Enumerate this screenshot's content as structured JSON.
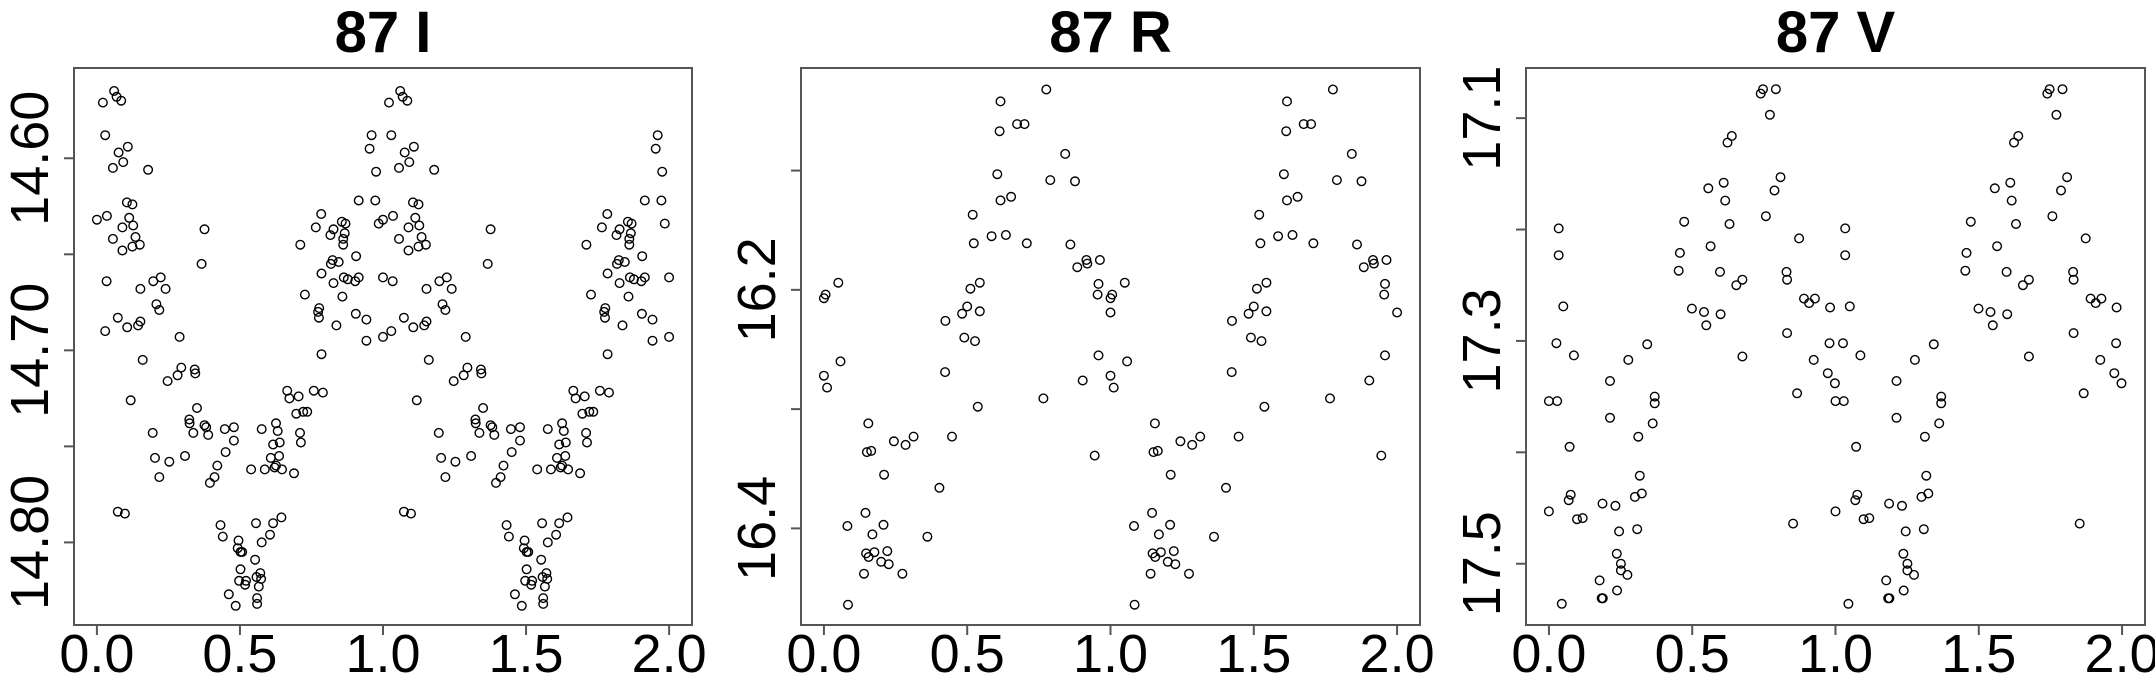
{
  "chart_data": [
    {
      "type": "scatter",
      "title": "87 I",
      "xlim": [
        -0.08,
        2.08
      ],
      "ylim": [
        14.843,
        14.553
      ],
      "y_reversed": true,
      "x_ticks": [
        0.0,
        0.5,
        1.0,
        1.5,
        2.0
      ],
      "x_tick_labels": [
        "0.0",
        "0.5",
        "1.0",
        "1.5",
        "2.0"
      ],
      "y_ticks": [
        14.6,
        14.65,
        14.7,
        14.75,
        14.8
      ],
      "y_tick_labels": [
        "14.60",
        "",
        "14.70",
        "",
        "14.80"
      ],
      "cycles_shown": 2,
      "grid": false,
      "marker": "open-circle",
      "points": [
        [
          0.0,
          14.632
        ],
        [
          0.021,
          14.571
        ],
        [
          0.029,
          14.588
        ],
        [
          0.035,
          14.63
        ],
        [
          0.034,
          14.664
        ],
        [
          0.029,
          14.69
        ],
        [
          0.06,
          14.565
        ],
        [
          0.069,
          14.568
        ],
        [
          0.085,
          14.57
        ],
        [
          0.056,
          14.605
        ],
        [
          0.076,
          14.597
        ],
        [
          0.092,
          14.602
        ],
        [
          0.108,
          14.594
        ],
        [
          0.056,
          14.642
        ],
        [
          0.089,
          14.636
        ],
        [
          0.105,
          14.623
        ],
        [
          0.124,
          14.624
        ],
        [
          0.113,
          14.631
        ],
        [
          0.127,
          14.635
        ],
        [
          0.135,
          14.641
        ],
        [
          0.124,
          14.646
        ],
        [
          0.15,
          14.645
        ],
        [
          0.089,
          14.648
        ],
        [
          0.179,
          14.606
        ],
        [
          0.073,
          14.683
        ],
        [
          0.106,
          14.688
        ],
        [
          0.144,
          14.687
        ],
        [
          0.152,
          14.685
        ],
        [
          0.152,
          14.668
        ],
        [
          0.197,
          14.664
        ],
        [
          0.223,
          14.662
        ],
        [
          0.24,
          14.668
        ],
        [
          0.208,
          14.676
        ],
        [
          0.218,
          14.679
        ],
        [
          0.16,
          14.705
        ],
        [
          0.118,
          14.726
        ],
        [
          0.289,
          14.693
        ],
        [
          0.295,
          14.709
        ],
        [
          0.282,
          14.713
        ],
        [
          0.247,
          14.716
        ],
        [
          0.342,
          14.71
        ],
        [
          0.344,
          14.712
        ],
        [
          0.376,
          14.637
        ],
        [
          0.366,
          14.655
        ],
        [
          0.35,
          14.73
        ],
        [
          0.195,
          14.743
        ],
        [
          0.323,
          14.736
        ],
        [
          0.324,
          14.738
        ],
        [
          0.337,
          14.743
        ],
        [
          0.376,
          14.739
        ],
        [
          0.382,
          14.74
        ],
        [
          0.389,
          14.744
        ],
        [
          0.203,
          14.756
        ],
        [
          0.253,
          14.758
        ],
        [
          0.308,
          14.755
        ],
        [
          0.218,
          14.766
        ],
        [
          0.073,
          14.784
        ],
        [
          0.098,
          14.785
        ],
        [
          0.421,
          14.76
        ],
        [
          0.411,
          14.766
        ],
        [
          0.395,
          14.769
        ],
        [
          0.45,
          14.753
        ],
        [
          0.447,
          14.741
        ],
        [
          0.479,
          14.74
        ],
        [
          0.479,
          14.747
        ],
        [
          0.432,
          14.791
        ],
        [
          0.44,
          14.797
        ],
        [
          0.495,
          14.799
        ],
        [
          0.492,
          14.803
        ],
        [
          0.502,
          14.805
        ],
        [
          0.508,
          14.805
        ],
        [
          0.502,
          14.814
        ],
        [
          0.497,
          14.82
        ],
        [
          0.518,
          14.822
        ],
        [
          0.521,
          14.82
        ],
        [
          0.461,
          14.827
        ],
        [
          0.485,
          14.833
        ],
        [
          0.56,
          14.829
        ],
        [
          0.56,
          14.832
        ],
        [
          0.553,
          14.809
        ],
        [
          0.558,
          14.818
        ],
        [
          0.571,
          14.816
        ],
        [
          0.574,
          14.819
        ],
        [
          0.566,
          14.823
        ],
        [
          0.576,
          14.8
        ],
        [
          0.556,
          14.79
        ],
        [
          0.605,
          14.796
        ],
        [
          0.616,
          14.79
        ],
        [
          0.645,
          14.787
        ],
        [
          0.539,
          14.762
        ],
        [
          0.587,
          14.762
        ],
        [
          0.608,
          14.756
        ],
        [
          0.621,
          14.761
        ],
        [
          0.626,
          14.76
        ],
        [
          0.637,
          14.755
        ],
        [
          0.647,
          14.762
        ],
        [
          0.689,
          14.764
        ],
        [
          0.616,
          14.749
        ],
        [
          0.639,
          14.748
        ],
        [
          0.632,
          14.742
        ],
        [
          0.626,
          14.738
        ],
        [
          0.576,
          14.741
        ],
        [
          0.665,
          14.721
        ],
        [
          0.673,
          14.725
        ],
        [
          0.705,
          14.724
        ],
        [
          0.697,
          14.733
        ],
        [
          0.721,
          14.732
        ],
        [
          0.735,
          14.732
        ],
        [
          0.71,
          14.743
        ],
        [
          0.713,
          14.748
        ],
        [
          0.758,
          14.721
        ],
        [
          0.79,
          14.722
        ],
        [
          0.785,
          14.702
        ],
        [
          0.711,
          14.645
        ],
        [
          0.727,
          14.671
        ],
        [
          0.765,
          14.636
        ],
        [
          0.784,
          14.629
        ],
        [
          0.785,
          14.66
        ],
        [
          0.773,
          14.68
        ],
        [
          0.776,
          14.683
        ],
        [
          0.777,
          14.678
        ],
        [
          0.816,
          14.64
        ],
        [
          0.827,
          14.637
        ],
        [
          0.856,
          14.633
        ],
        [
          0.869,
          14.634
        ],
        [
          0.861,
          14.642
        ],
        [
          0.866,
          14.639
        ],
        [
          0.861,
          14.645
        ],
        [
          0.824,
          14.653
        ],
        [
          0.818,
          14.655
        ],
        [
          0.845,
          14.654
        ],
        [
          0.906,
          14.651
        ],
        [
          0.863,
          14.662
        ],
        [
          0.877,
          14.663
        ],
        [
          0.915,
          14.662
        ],
        [
          0.903,
          14.664
        ],
        [
          0.827,
          14.665
        ],
        [
          0.858,
          14.672
        ],
        [
          0.837,
          14.687
        ],
        [
          0.905,
          14.681
        ],
        [
          0.942,
          14.684
        ],
        [
          0.942,
          14.695
        ],
        [
          0.915,
          14.622
        ],
        [
          0.953,
          14.595
        ],
        [
          0.96,
          14.588
        ],
        [
          0.976,
          14.607
        ],
        [
          0.973,
          14.622
        ],
        [
          0.985,
          14.634
        ],
        [
          1.0,
          14.662
        ],
        [
          1.0,
          14.693
        ]
      ]
    },
    {
      "type": "scatter",
      "title": "87 R",
      "xlim": [
        -0.08,
        2.08
      ],
      "ylim": [
        16.481,
        16.014
      ],
      "y_reversed": true,
      "x_ticks": [
        0.0,
        0.5,
        1.0,
        1.5,
        2.0
      ],
      "x_tick_labels": [
        "0.0",
        "0.5",
        "1.0",
        "1.5",
        "2.0"
      ],
      "y_ticks": [
        16.1,
        16.2,
        16.3,
        16.4
      ],
      "y_tick_labels": [
        "",
        "16.2",
        "",
        "16.4"
      ],
      "cycles_shown": 2,
      "grid": false,
      "marker": "open-circle",
      "points": [
        [
          0.0,
          16.207
        ],
        [
          0.006,
          16.204
        ],
        [
          0.05,
          16.194
        ],
        [
          0.0,
          16.272
        ],
        [
          0.011,
          16.282
        ],
        [
          0.058,
          16.26
        ],
        [
          0.082,
          16.398
        ],
        [
          0.084,
          16.464
        ],
        [
          0.155,
          16.312
        ],
        [
          0.15,
          16.336
        ],
        [
          0.165,
          16.335
        ],
        [
          0.244,
          16.327
        ],
        [
          0.285,
          16.33
        ],
        [
          0.313,
          16.323
        ],
        [
          0.21,
          16.355
        ],
        [
          0.403,
          16.366
        ],
        [
          0.145,
          16.387
        ],
        [
          0.208,
          16.397
        ],
        [
          0.169,
          16.405
        ],
        [
          0.147,
          16.421
        ],
        [
          0.156,
          16.424
        ],
        [
          0.176,
          16.42
        ],
        [
          0.221,
          16.419
        ],
        [
          0.2,
          16.428
        ],
        [
          0.226,
          16.43
        ],
        [
          0.14,
          16.438
        ],
        [
          0.274,
          16.438
        ],
        [
          0.361,
          16.407
        ],
        [
          0.424,
          16.226
        ],
        [
          0.423,
          16.269
        ],
        [
          0.447,
          16.323
        ],
        [
          0.482,
          16.22
        ],
        [
          0.5,
          16.214
        ],
        [
          0.49,
          16.24
        ],
        [
          0.527,
          16.243
        ],
        [
          0.511,
          16.199
        ],
        [
          0.544,
          16.194
        ],
        [
          0.544,
          16.218
        ],
        [
          0.537,
          16.298
        ],
        [
          0.519,
          16.137
        ],
        [
          0.523,
          16.161
        ],
        [
          0.585,
          16.155
        ],
        [
          0.605,
          16.103
        ],
        [
          0.616,
          16.125
        ],
        [
          0.635,
          16.154
        ],
        [
          0.653,
          16.122
        ],
        [
          0.613,
          16.067
        ],
        [
          0.616,
          16.042
        ],
        [
          0.674,
          16.061
        ],
        [
          0.7,
          16.061
        ],
        [
          0.708,
          16.161
        ],
        [
          0.766,
          16.291
        ],
        [
          0.776,
          16.032
        ],
        [
          0.79,
          16.108
        ],
        [
          0.842,
          16.086
        ],
        [
          0.876,
          16.109
        ],
        [
          0.86,
          16.162
        ],
        [
          0.884,
          16.181
        ],
        [
          0.916,
          16.175
        ],
        [
          0.919,
          16.178
        ],
        [
          0.963,
          16.175
        ],
        [
          0.903,
          16.276
        ],
        [
          0.945,
          16.339
        ],
        [
          0.958,
          16.195
        ],
        [
          0.955,
          16.204
        ],
        [
          0.958,
          16.255
        ],
        [
          1.0,
          16.219
        ]
      ]
    },
    {
      "type": "scatter",
      "title": "87 V",
      "xlim": [
        -0.08,
        2.08
      ],
      "ylim": [
        17.555,
        17.055
      ],
      "y_reversed": true,
      "x_ticks": [
        0.0,
        0.5,
        1.0,
        1.5,
        2.0
      ],
      "x_tick_labels": [
        "0.0",
        "0.5",
        "1.0",
        "1.5",
        "2.0"
      ],
      "y_ticks": [
        17.1,
        17.2,
        17.3,
        17.4,
        17.5
      ],
      "y_tick_labels": [
        "17.1",
        "",
        "17.3",
        "",
        "17.5"
      ],
      "cycles_shown": 2,
      "grid": false,
      "marker": "open-circle",
      "points": [
        [
          0.0,
          17.354
        ],
        [
          0.029,
          17.354
        ],
        [
          0.0,
          17.453
        ],
        [
          0.034,
          17.199
        ],
        [
          0.034,
          17.223
        ],
        [
          0.05,
          17.269
        ],
        [
          0.026,
          17.302
        ],
        [
          0.087,
          17.313
        ],
        [
          0.072,
          17.395
        ],
        [
          0.076,
          17.438
        ],
        [
          0.069,
          17.443
        ],
        [
          0.098,
          17.46
        ],
        [
          0.118,
          17.459
        ],
        [
          0.045,
          17.536
        ],
        [
          0.213,
          17.336
        ],
        [
          0.213,
          17.369
        ],
        [
          0.277,
          17.317
        ],
        [
          0.343,
          17.303
        ],
        [
          0.369,
          17.35
        ],
        [
          0.369,
          17.356
        ],
        [
          0.362,
          17.374
        ],
        [
          0.312,
          17.386
        ],
        [
          0.317,
          17.421
        ],
        [
          0.3,
          17.44
        ],
        [
          0.324,
          17.437
        ],
        [
          0.308,
          17.469
        ],
        [
          0.187,
          17.446
        ],
        [
          0.232,
          17.448
        ],
        [
          0.245,
          17.471
        ],
        [
          0.237,
          17.491
        ],
        [
          0.251,
          17.5
        ],
        [
          0.251,
          17.506
        ],
        [
          0.274,
          17.51
        ],
        [
          0.177,
          17.515
        ],
        [
          0.184,
          17.531
        ],
        [
          0.188,
          17.531
        ],
        [
          0.238,
          17.524
        ],
        [
          0.453,
          17.237
        ],
        [
          0.457,
          17.221
        ],
        [
          0.472,
          17.193
        ],
        [
          0.499,
          17.271
        ],
        [
          0.541,
          17.274
        ],
        [
          0.549,
          17.286
        ],
        [
          0.556,
          17.163
        ],
        [
          0.564,
          17.215
        ],
        [
          0.597,
          17.238
        ],
        [
          0.599,
          17.276
        ],
        [
          0.61,
          17.158
        ],
        [
          0.615,
          17.174
        ],
        [
          0.63,
          17.195
        ],
        [
          0.623,
          17.122
        ],
        [
          0.638,
          17.116
        ],
        [
          0.654,
          17.25
        ],
        [
          0.675,
          17.245
        ],
        [
          0.675,
          17.314
        ],
        [
          0.739,
          17.078
        ],
        [
          0.747,
          17.074
        ],
        [
          0.792,
          17.074
        ],
        [
          0.771,
          17.097
        ],
        [
          0.757,
          17.188
        ],
        [
          0.787,
          17.165
        ],
        [
          0.808,
          17.153
        ],
        [
          0.829,
          17.238
        ],
        [
          0.831,
          17.245
        ],
        [
          0.831,
          17.293
        ],
        [
          0.852,
          17.464
        ],
        [
          0.866,
          17.347
        ],
        [
          0.873,
          17.208
        ],
        [
          0.89,
          17.262
        ],
        [
          0.908,
          17.266
        ],
        [
          0.928,
          17.262
        ],
        [
          0.924,
          17.317
        ],
        [
          0.973,
          17.329
        ],
        [
          0.981,
          17.27
        ],
        [
          0.979,
          17.302
        ],
        [
          0.998,
          17.338
        ]
      ]
    }
  ]
}
